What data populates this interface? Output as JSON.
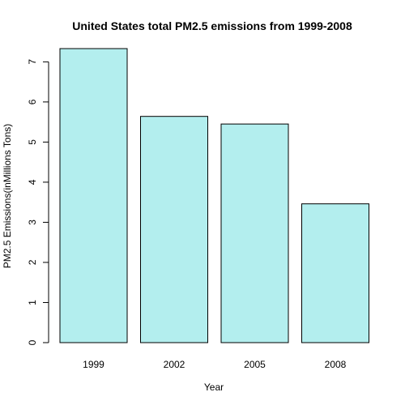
{
  "chart_data": {
    "type": "bar",
    "title": "United States total PM2.5 emissions from 1999-2008",
    "xlabel": "Year",
    "ylabel": "PM2.5 Emissions(inMillions Tons)",
    "categories": [
      "1999",
      "2002",
      "2005",
      "2008"
    ],
    "values": [
      7.33,
      5.64,
      5.45,
      3.46
    ],
    "ylim": [
      0,
      7.33
    ],
    "yticks": [
      "0",
      "1",
      "2",
      "3",
      "4",
      "5",
      "6",
      "7"
    ],
    "grid": false,
    "legend": "none",
    "bar_fill_color": "#b3eeee",
    "bar_stroke_color": "#000000"
  }
}
